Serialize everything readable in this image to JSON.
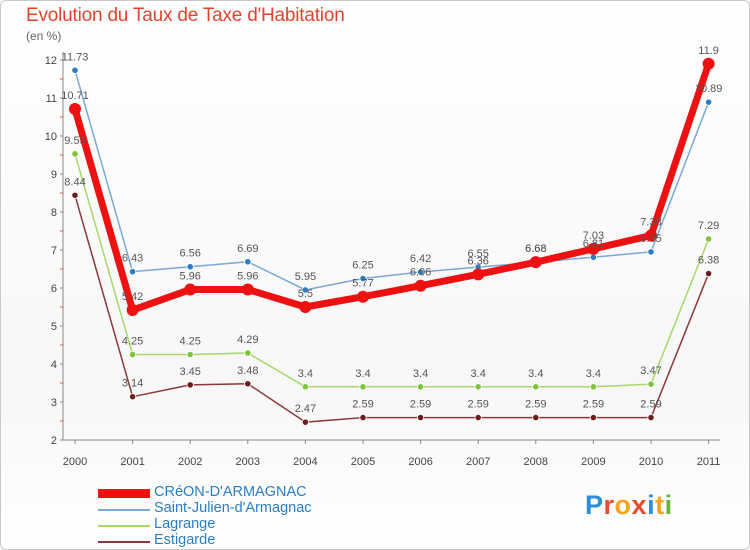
{
  "title": "Evolution du Taux de Taxe d'Habitation",
  "unit_label": "(en %)",
  "logo": {
    "text": "Proxiti",
    "colors": [
      "#2f8ed9",
      "#e54d2e",
      "#f4a623",
      "#e54d2e",
      "#2f8ed9",
      "#f4a623",
      "#65b33a"
    ]
  },
  "chart_data": {
    "type": "line",
    "title": "Evolution du Taux de Taxe d'Habitation",
    "ylabel": "(en %)",
    "xlabel": "",
    "x": [
      "2000",
      "2001",
      "2002",
      "2003",
      "2004",
      "2005",
      "2006",
      "2007",
      "2008",
      "2009",
      "2010",
      "2011"
    ],
    "ylim": [
      2,
      12
    ],
    "yticks": [
      "2",
      "3",
      "4",
      "5",
      "6",
      "7",
      "8",
      "9",
      "10",
      "11",
      "12"
    ],
    "grid": false,
    "legend": "bottom-left",
    "series": [
      {
        "name": "CRéON-D'ARMAGNAC",
        "color": "#ee1111",
        "values": [
          10.71,
          5.42,
          5.96,
          5.96,
          5.5,
          5.77,
          6.06,
          6.36,
          6.68,
          7.03,
          7.38,
          11.9
        ],
        "labels": [
          "10.71",
          "5.42",
          "5.96",
          "5.96",
          "5.5",
          "5.77",
          "6.06",
          "6.36",
          "6.68",
          "7.03",
          "7.38",
          "11.9"
        ]
      },
      {
        "name": "Saint-Julien-d'Armagnac",
        "color": "#7aa8d8",
        "marker": "#2c7dc4",
        "values": [
          11.73,
          6.43,
          6.56,
          6.69,
          5.95,
          6.25,
          6.42,
          6.55,
          6.68,
          6.81,
          6.95,
          10.89
        ],
        "labels": [
          "11.73",
          "6.43",
          "6.56",
          "6.69",
          "5.95",
          "6.25",
          "6.42",
          "6.55",
          "6.68",
          "6.81",
          "6.95",
          "10.89"
        ]
      },
      {
        "name": "Lagrange",
        "color": "#a6d86a",
        "marker": "#7cc43a",
        "values": [
          9.53,
          4.25,
          4.25,
          4.29,
          3.4,
          3.4,
          3.4,
          3.4,
          3.4,
          3.4,
          3.47,
          7.29
        ],
        "labels": [
          "9.53",
          "4.25",
          "4.25",
          "4.29",
          "3.4",
          "3.4",
          "3.4",
          "3.4",
          "3.4",
          "3.4",
          "3.47",
          "7.29"
        ]
      },
      {
        "name": "Estigarde",
        "color": "#8c3838",
        "marker": "#6b1c1c",
        "values": [
          8.44,
          3.14,
          3.45,
          3.48,
          2.47,
          2.59,
          2.59,
          2.59,
          2.59,
          2.59,
          2.59,
          6.38
        ],
        "labels": [
          "8.44",
          "3.14",
          "3.45",
          "3.48",
          "2.47",
          "2.59",
          "2.59",
          "2.59",
          "2.59",
          "2.59",
          "2.59",
          "6.38"
        ]
      }
    ]
  }
}
